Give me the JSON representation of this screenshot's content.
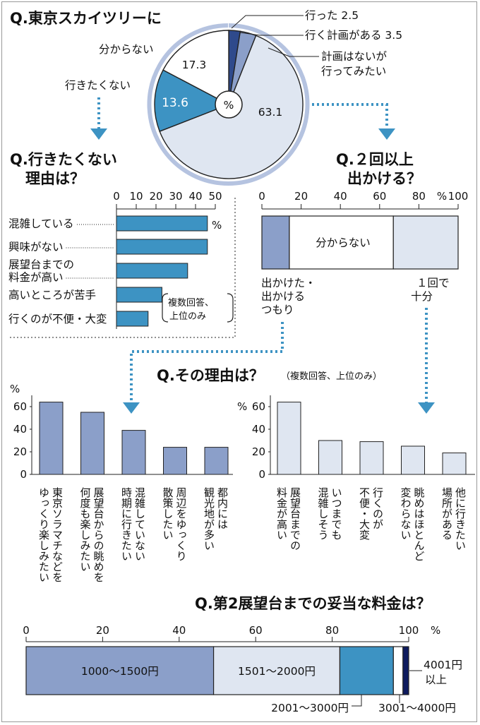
{
  "chart_data": [
    {
      "type": "pie",
      "title": "Q.東京スカイツリーに",
      "center_label": "%",
      "slices": [
        {
          "label": "行った",
          "value": 2.5,
          "color": "#2f4a8c"
        },
        {
          "label": "行く計画がある",
          "value": 3.5,
          "color": "#8b9fc9"
        },
        {
          "label": "計画はないが行ってみたい",
          "value": 63.1,
          "color": "#dfe6f1"
        },
        {
          "label": "行きたくない",
          "value": 13.6,
          "color": "#3d93c3"
        },
        {
          "label": "分からない",
          "value": 17.3,
          "color": "#ffffff"
        }
      ],
      "labels": {
        "went": "行った 2.5",
        "plan": "行く計画がある 3.5",
        "no_plan_line1": "計画はないが",
        "no_plan_line2": "行ってみたい",
        "dont_know": "分からない",
        "dont_want": "行きたくない",
        "v_dont_know": "17.3",
        "v_dont_want": "13.6",
        "v_no_plan": "63.1"
      }
    },
    {
      "type": "bar",
      "orientation": "horizontal",
      "title_line1": "Q.行きたくない",
      "title_line2": "理由は？",
      "categories": [
        "混雑している",
        "興味がない",
        "展望台までの料金が高い",
        "高いところが苦手",
        "行くのが不便・大変"
      ],
      "category_lines": [
        [
          "混雑している"
        ],
        [
          "興味がない"
        ],
        [
          "展望台までの",
          "料金が高い"
        ],
        [
          "高いところが苦手"
        ],
        [
          "行くのが不便・大変"
        ]
      ],
      "values": [
        46,
        46,
        36,
        23,
        16
      ],
      "xlim": [
        0,
        50
      ],
      "ticks": [
        "0",
        "10",
        "20",
        "30",
        "40",
        "50"
      ],
      "unit": "%",
      "note_line1": "複数回答、",
      "note_line2": "上位のみ",
      "color": "#3d93c3"
    },
    {
      "type": "bar",
      "orientation": "stacked-horizontal",
      "title_line1": "Q.２回以上",
      "title_line2": "出かける？",
      "segments": [
        {
          "label": "出かけた・出かけるつもり",
          "value": 14,
          "color": "#8b9fc9"
        },
        {
          "label": "分からない",
          "value": 53,
          "color": "#ffffff"
        },
        {
          "label": "1回で十分",
          "value": 33,
          "color": "#dfe6f1"
        }
      ],
      "ticks": [
        "0",
        "20",
        "40",
        "60",
        "80",
        "100"
      ],
      "unit": "%",
      "inner_label": "分からない",
      "left_label": [
        "出かけた・",
        "出かける",
        "つもり"
      ],
      "right_label": [
        "１回で",
        "十分"
      ]
    },
    {
      "type": "bar",
      "title": "Q.その理由は？",
      "note": "（複数回答、上位のみ）",
      "unit": "%",
      "ticks": [
        "0",
        "20",
        "40",
        "60"
      ],
      "ylim": [
        0,
        70
      ],
      "color": "#8b9fc9",
      "categories": [
        "東京ソラマチなどをゆっくり楽しみたい",
        "展望台からの眺めを何度も楽しみたい",
        "混雑していない時期に行きたい",
        "周辺をゆっくり散策したい",
        "都内には観光地が多い"
      ],
      "category_columns": [
        [
          "東京ソラマチなどを",
          "ゆっくり楽しみたい"
        ],
        [
          "展望台からの眺めを",
          "何度も楽しみたい"
        ],
        [
          "混雑していない",
          "時期に行きたい"
        ],
        [
          "周辺をゆっくり",
          "散策したい"
        ],
        [
          "都内には",
          "観光地が多い"
        ]
      ],
      "values": [
        64,
        55,
        39,
        24,
        24
      ]
    },
    {
      "type": "bar",
      "unit": "%",
      "ticks": [
        "0",
        "20",
        "40",
        "60"
      ],
      "ylim": [
        0,
        70
      ],
      "color": "#dfe6f1",
      "categories": [
        "展望台までの料金が高い",
        "いつまでも混雑しそう",
        "行くのが不便・大変",
        "眺めはほとんど変わらない",
        "他に行きたい場所がある"
      ],
      "category_columns": [
        [
          "展望台までの",
          "料金が高い"
        ],
        [
          "いつまでも",
          "混雑しそう"
        ],
        [
          "行くのが",
          "不便・大変"
        ],
        [
          "眺めはほとんど",
          "変わらない"
        ],
        [
          "他に行きたい",
          "場所がある"
        ]
      ],
      "values": [
        64,
        30,
        29,
        25,
        19
      ]
    },
    {
      "type": "bar",
      "orientation": "stacked-horizontal",
      "title": "Q.第2展望台までの妥当な料金は？",
      "ticks": [
        "0",
        "20",
        "40",
        "60",
        "80",
        "100"
      ],
      "unit": "%",
      "segments": [
        {
          "label": "1000～1500円",
          "value": 49,
          "color": "#8b9fc9"
        },
        {
          "label": "1501～2000円",
          "value": 33,
          "color": "#dfe6f1"
        },
        {
          "label": "2001～3000円",
          "value": 14,
          "color": "#3d93c3"
        },
        {
          "label": "3001～4000円",
          "value": 2.5,
          "color": "#ffffff"
        },
        {
          "label": "4001円以上",
          "value": 1.5,
          "color": "#0d1a5e"
        }
      ],
      "label_4001_line1": "4001円",
      "label_4001_line2": "以上"
    }
  ]
}
